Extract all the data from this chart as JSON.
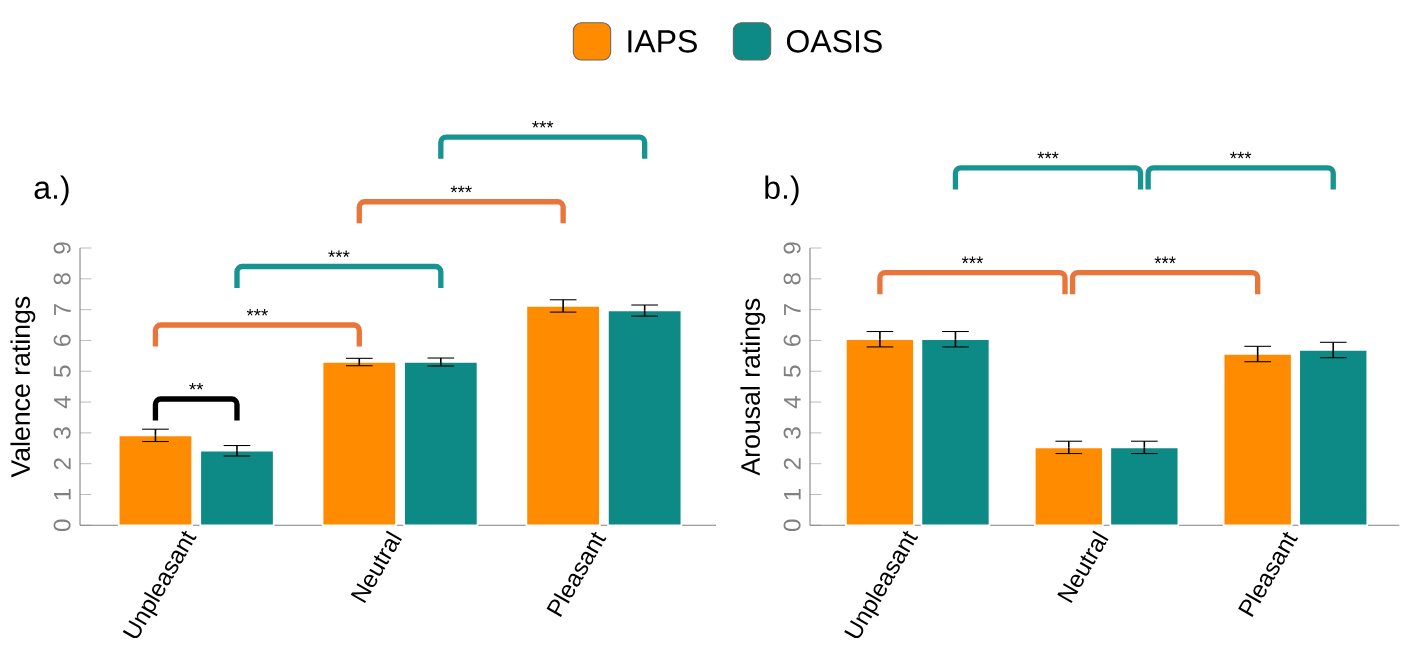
{
  "chart_data": [
    {
      "type": "bar",
      "title": "a.)",
      "ylabel": "Valence ratings",
      "categories": [
        "Unpleasant",
        "Neutral",
        "Pleasant"
      ],
      "series": [
        {
          "name": "IAPS",
          "color": "#ff8c00",
          "values": [
            2.92,
            5.3,
            7.12
          ],
          "errors": [
            0.2,
            0.12,
            0.2
          ]
        },
        {
          "name": "OASIS",
          "color": "#0e8a86",
          "values": [
            2.42,
            5.3,
            6.97
          ],
          "errors": [
            0.17,
            0.13,
            0.18
          ]
        }
      ],
      "ylim": [
        0,
        9
      ],
      "yticks": [
        0,
        1,
        2,
        3,
        4,
        5,
        6,
        7,
        8,
        9
      ],
      "legend": "top",
      "annotations": [
        "**",
        "***",
        "***",
        "***",
        "***"
      ]
    },
    {
      "type": "bar",
      "title": "b.)",
      "ylabel": "Arousal ratings",
      "categories": [
        "Unpleasant",
        "Neutral",
        "Pleasant"
      ],
      "series": [
        {
          "color": "#ff8c00",
          "values": [
            6.04,
            2.53,
            5.56
          ],
          "errors": [
            0.25,
            0.2,
            0.25
          ]
        },
        {
          "color": "#0e8a86",
          "values": [
            6.04,
            2.53,
            5.69
          ],
          "errors": [
            0.25,
            0.2,
            0.25
          ]
        }
      ],
      "ylim": [
        0,
        9
      ],
      "yticks": [
        0,
        1,
        2,
        3,
        4,
        5,
        6,
        7,
        8,
        9
      ],
      "annotations": [
        "***",
        "***",
        "***",
        "***"
      ]
    }
  ]
}
